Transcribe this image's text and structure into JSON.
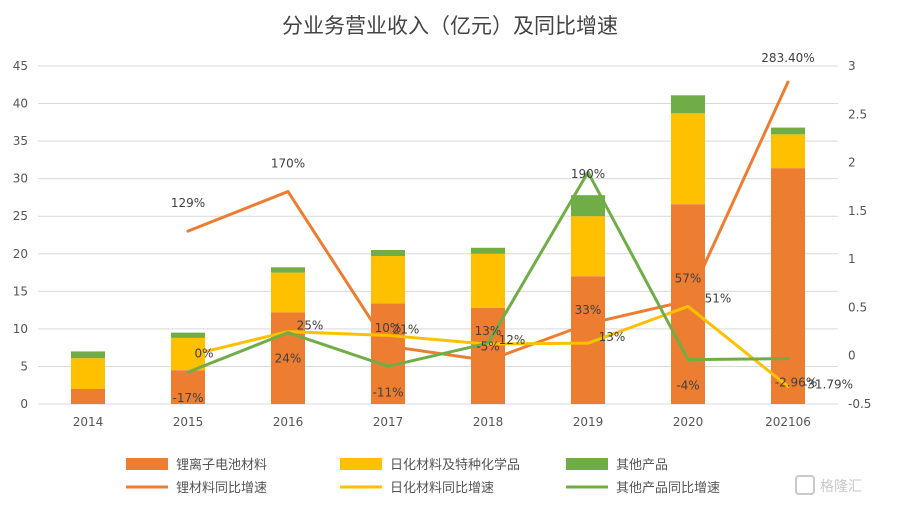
{
  "chart_data": {
    "type": "bar",
    "title": "分业务营业收入（亿元）及同比增速",
    "categories": [
      "2014",
      "2015",
      "2016",
      "2017",
      "2018",
      "2019",
      "2020",
      "202106"
    ],
    "y_left": {
      "ylim": [
        0,
        45
      ],
      "ticks": [
        "0",
        "5",
        "10",
        "15",
        "20",
        "25",
        "30",
        "35",
        "40",
        "45"
      ]
    },
    "y_right": {
      "ylim": [
        -0.5,
        3
      ],
      "ticks": [
        "-0.5",
        "0",
        "0.5",
        "1",
        "1.5",
        "2",
        "2.5",
        "3"
      ]
    },
    "grid": true,
    "legend_position": "bottom",
    "bar_series": [
      {
        "name": "锂离子电池材料",
        "color": "#ED7D31",
        "values": [
          2.0,
          4.5,
          12.2,
          13.4,
          12.8,
          17.0,
          26.6,
          31.4
        ]
      },
      {
        "name": "日化材料及特种化学品",
        "color": "#FFC000",
        "values": [
          4.1,
          4.3,
          5.3,
          6.3,
          7.2,
          8.0,
          12.1,
          4.5
        ]
      },
      {
        "name": "其他产品",
        "color": "#70AD47",
        "values": [
          0.9,
          0.7,
          0.7,
          0.8,
          0.8,
          2.8,
          2.4,
          0.9
        ]
      }
    ],
    "line_series": [
      {
        "name": "锂材料同比增速",
        "color": "#ED7D31",
        "values": [
          null,
          1.29,
          1.7,
          0.1,
          -0.05,
          0.33,
          0.57,
          2.834
        ],
        "labels": [
          "",
          "129%",
          "170%",
          "10%",
          "-5%",
          "33%",
          "57%",
          "283.40%"
        ]
      },
      {
        "name": "日化材料同比增速",
        "color": "#FFC000",
        "values": [
          null,
          0.0,
          0.25,
          0.21,
          0.12,
          0.13,
          0.51,
          -0.3179
        ],
        "labels": [
          "",
          "0%",
          "25%",
          "21%",
          "12%",
          "13%",
          "51%",
          "-31.79%"
        ]
      },
      {
        "name": "其他产品同比增速",
        "color": "#70AD47",
        "values": [
          null,
          -0.17,
          0.24,
          -0.11,
          0.13,
          1.9,
          -0.04,
          -0.0296
        ],
        "labels": [
          "",
          "-17%",
          "24%",
          "-11%",
          "13%",
          "190%",
          "-4%",
          "-2.96%"
        ]
      }
    ],
    "watermark": "格隆汇"
  }
}
